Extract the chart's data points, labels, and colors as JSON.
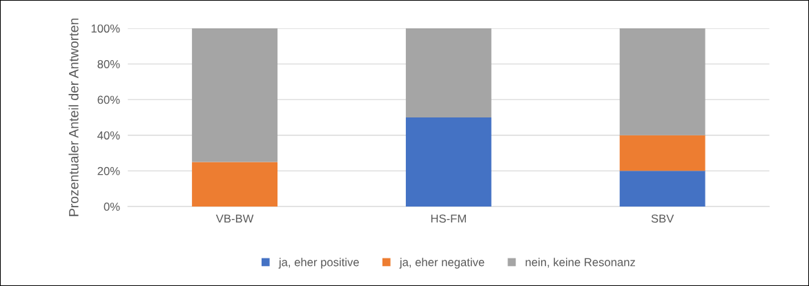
{
  "chart_data": {
    "type": "bar",
    "stacked": true,
    "ylabel": "Prozentualer Anteil der Antworten",
    "categories": [
      "VB-BW",
      "HS-FM",
      "SBV"
    ],
    "series": [
      {
        "name": "ja, eher positive",
        "color": "#4472c4",
        "values": [
          0,
          50,
          20
        ]
      },
      {
        "name": "ja, eher negative",
        "color": "#ed7d31",
        "values": [
          25,
          0,
          20
        ]
      },
      {
        "name": "nein, keine Resonanz",
        "color": "#a5a5a5",
        "values": [
          75,
          50,
          60
        ]
      }
    ],
    "ylim": [
      0,
      100
    ],
    "yticks": [
      {
        "value": 0,
        "label": "0%"
      },
      {
        "value": 20,
        "label": "20%"
      },
      {
        "value": 40,
        "label": "40%"
      },
      {
        "value": 60,
        "label": "60%"
      },
      {
        "value": 80,
        "label": "80%"
      },
      {
        "value": 100,
        "label": "100%"
      }
    ],
    "grid": "y",
    "legend": "bottom"
  }
}
